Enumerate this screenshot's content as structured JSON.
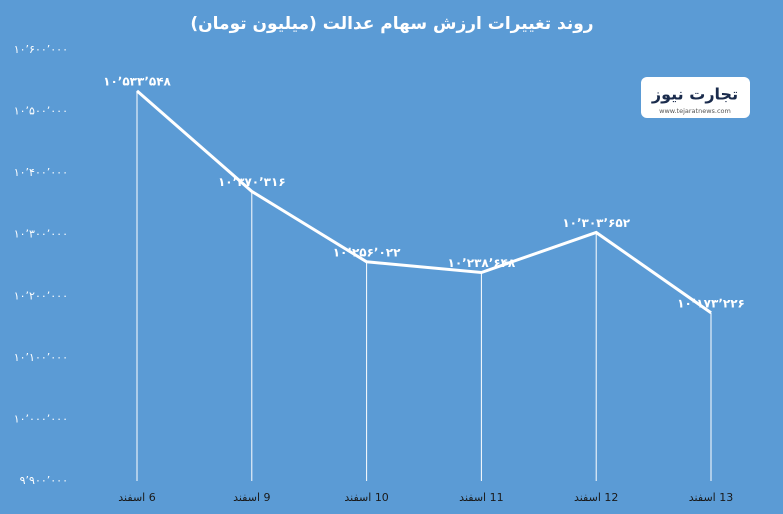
{
  "chart_data": {
    "type": "line",
    "title": "روند تغییرات ارزش سهام عدالت (میلیون تومان)",
    "categories": [
      "6 اسفند",
      "9 اسفند",
      "10 اسفند",
      "11 اسفند",
      "12 اسفند",
      "13 اسفند"
    ],
    "values": [
      10533548,
      10370316,
      10256022,
      10238648,
      10303652,
      10173226
    ],
    "value_labels": [
      "۱۰٬۵۳۳٬۵۴۸",
      "۱۰٬۳۷۰٬۳۱۶",
      "۱۰٬۲۵۶٬۰۲۲",
      "۱۰٬۲۳۸٬۶۴۸",
      "۱۰٬۳۰۳٬۶۵۲",
      "۱۰٬۱۷۳٬۲۲۶"
    ],
    "color": "#ffffff",
    "ylim": [
      9900000,
      10600000
    ],
    "yticks": [
      {
        "value": 9900000,
        "label": "۹٬۹۰۰٬۰۰۰"
      },
      {
        "value": 10000000,
        "label": "۱۰٬۰۰۰٬۰۰۰"
      },
      {
        "value": 10100000,
        "label": "۱۰٬۱۰۰٬۰۰۰"
      },
      {
        "value": 10200000,
        "label": "۱۰٬۲۰۰٬۰۰۰"
      },
      {
        "value": 10300000,
        "label": "۱۰٬۳۰۰٬۰۰۰"
      },
      {
        "value": 10400000,
        "label": "۱۰٬۴۰۰٬۰۰۰"
      },
      {
        "value": 10500000,
        "label": "۱۰٬۵۰۰٬۰۰۰"
      },
      {
        "value": 10600000,
        "label": "۱۰٬۶۰۰٬۰۰۰"
      }
    ],
    "grid": false,
    "drop_lines": true
  },
  "logo": {
    "name": "تجارت نیوز",
    "url": "www.tejaratnews.com"
  }
}
